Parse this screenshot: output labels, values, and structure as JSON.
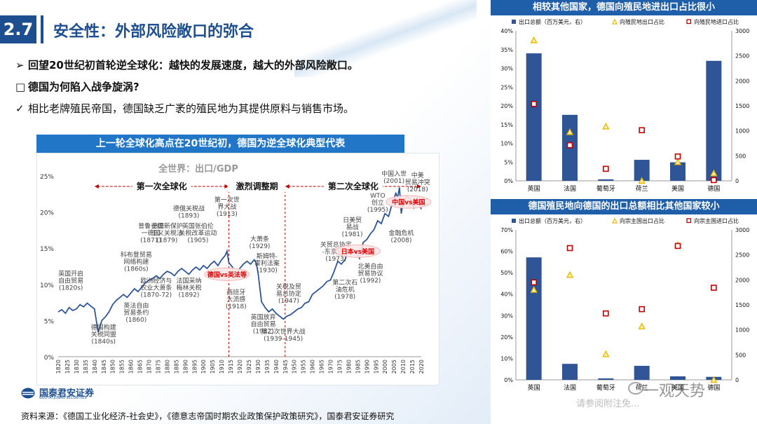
{
  "header": {
    "section_number": "2.7",
    "title": "安全性：外部风险敞口的弥合"
  },
  "bullets": [
    {
      "mark": "➢",
      "text": "回望20世纪初首轮逆全球化：越快的发展速度，越大的外部风险敞口。"
    },
    {
      "mark": "□",
      "text": "德国为何陷入战争旋涡?"
    },
    {
      "mark": "✓",
      "text": "相比老牌殖民帝国，德国缺乏广袤的殖民地为其提供原料与销售市场。"
    }
  ],
  "main_chart": {
    "banner": "上一轮全球化高点在20世纪初，德国为逆全球化典型代表"
  },
  "logo": {
    "cn": "国泰君安证券",
    "en": "GUOTAI JUNAN SECURITIES"
  },
  "source": "资料来源：《德国工业化经济-社会史》，《德意志帝国时期农业政策保护政策研究》，国泰君安证券研究",
  "right_top": {
    "banner": "相较其他国家，德国向殖民地进出口占比很小"
  },
  "right_bottom": {
    "banner": "德国殖民地向德国的出口总额相比其他国家较小",
    "partial_caption": "请参阅附注免..."
  },
  "watermark": {
    "text": "一观天势"
  },
  "chart_data": [
    {
      "type": "line",
      "title": "全世界：出口/GDP",
      "x": [
        1820,
        1822,
        1824,
        1826,
        1828,
        1830,
        1832,
        1834,
        1836,
        1838,
        1840,
        1842,
        1844,
        1846,
        1848,
        1850,
        1852,
        1854,
        1856,
        1858,
        1860,
        1862,
        1864,
        1866,
        1868,
        1870,
        1872,
        1874,
        1876,
        1878,
        1880,
        1882,
        1884,
        1886,
        1888,
        1890,
        1892,
        1894,
        1896,
        1898,
        1900,
        1902,
        1904,
        1906,
        1908,
        1910,
        1912,
        1913,
        1914,
        1916,
        1918,
        1920,
        1922,
        1924,
        1926,
        1928,
        1929,
        1930,
        1932,
        1934,
        1936,
        1938,
        1940,
        1942,
        1944,
        1946,
        1948,
        1950,
        1952,
        1954,
        1956,
        1958,
        1960,
        1962,
        1964,
        1966,
        1968,
        1970,
        1972,
        1974,
        1976,
        1978,
        1980,
        1982,
        1984,
        1986,
        1988,
        1990,
        1992,
        1994,
        1996,
        1998,
        2000,
        2002,
        2004,
        2006,
        2007,
        2008,
        2009,
        2010,
        2012,
        2014,
        2016,
        2018,
        2020
      ],
      "y": [
        6.2,
        6.5,
        6.0,
        6.8,
        6.4,
        6.6,
        7.2,
        6.9,
        7.4,
        7.0,
        6.6,
        3.4,
        5.0,
        5.5,
        6.2,
        7.2,
        7.8,
        8.2,
        8.6,
        8.2,
        8.8,
        9.4,
        9.0,
        9.6,
        10.2,
        10.6,
        10.8,
        11.2,
        10.8,
        11.4,
        11.8,
        11.6,
        11.2,
        11.8,
        12.2,
        11.8,
        11.4,
        12.0,
        12.4,
        12.0,
        12.6,
        12.2,
        12.8,
        13.2,
        12.6,
        13.4,
        14.0,
        14.6,
        13.0,
        12.4,
        11.2,
        12.2,
        12.8,
        13.2,
        12.8,
        13.4,
        13.0,
        11.8,
        7.6,
        6.8,
        6.2,
        6.6,
        6.0,
        5.6,
        5.2,
        5.6,
        5.8,
        6.2,
        6.6,
        6.8,
        7.4,
        7.6,
        8.6,
        9.0,
        9.4,
        9.8,
        10.4,
        10.6,
        11.8,
        13.2,
        12.8,
        13.4,
        14.8,
        14.4,
        14.6,
        13.6,
        15.8,
        16.2,
        17.0,
        17.6,
        18.8,
        18.4,
        19.8,
        19.4,
        21.2,
        22.6,
        22.0,
        23.4,
        19.8,
        21.4,
        22.2,
        21.8,
        20.6,
        22.0,
        20.4
      ],
      "ylim": [
        0,
        25
      ],
      "yticks": [
        "0%",
        "5%",
        "10%",
        "15%",
        "20%",
        "25%"
      ],
      "xticks": [
        "1820",
        "1825",
        "1830",
        "1835",
        "1840",
        "1845",
        "1850",
        "1855",
        "1860",
        "1865",
        "1870",
        "1875",
        "1880",
        "1885",
        "1890",
        "1895",
        "1900",
        "1905",
        "1910",
        "1915",
        "1920",
        "1925",
        "1930",
        "1935",
        "1940",
        "1945",
        "1950",
        "1955",
        "1960",
        "1965",
        "1970",
        "1975",
        "1980",
        "1985",
        "1990",
        "1995",
        "2000",
        "2005",
        "2010",
        "2015",
        "2020"
      ],
      "periods": [
        {
          "label": "第一次全球化",
          "start": 1840,
          "end": 1914
        },
        {
          "label": "激烈调整期",
          "start": 1914,
          "end": 1945
        },
        {
          "label": "第二次全球化",
          "start": 1945,
          "end": 2020
        }
      ],
      "highlights": [
        {
          "text": "德国vs英法等",
          "x": 1913,
          "y": 11.4
        },
        {
          "text": "日本vs美国",
          "x": 1985,
          "y": 14.6
        },
        {
          "text": "中国vs美国",
          "x": 2013,
          "y": 21.4
        }
      ],
      "annotations": [
        {
          "text": "英国开启\n自由贸易\n(1820s)",
          "x": 1827,
          "y": 11.2
        },
        {
          "text": "德国构建\n关税同盟\n(1840s)",
          "x": 1845,
          "y": 3.8
        },
        {
          "text": "科布登贸易\n网络构建\n(1860s)",
          "x": 1863,
          "y": 13.8
        },
        {
          "text": "英法自由\n贸易条约\n(1860)",
          "x": 1863,
          "y": 6.8
        },
        {
          "text": "普鲁士统\n一德国\n(1871)",
          "x": 1871,
          "y": 17.8
        },
        {
          "text": "德国新保护\n主义关税法\n(1879)",
          "x": 1880,
          "y": 17.8
        },
        {
          "text": "欧洲经济与\n农业大萧条\n(1870-72)",
          "x": 1874,
          "y": 10.2
        },
        {
          "text": "德俄关税战\n(1893)",
          "x": 1892,
          "y": 20.2
        },
        {
          "text": "英国张伯伦\n关税改革运动\n(1905)",
          "x": 1897,
          "y": 17.8
        },
        {
          "text": "法国采纳\n梅林关税\n(1892)",
          "x": 1892,
          "y": 10.2
        },
        {
          "text": "第一次世\n界大战\n(1913)",
          "x": 1913,
          "y": 21.4
        },
        {
          "text": "西班牙\n大流感\n(1918)",
          "x": 1918,
          "y": 8.6
        },
        {
          "text": "大萧条\n(1929)",
          "x": 1931,
          "y": 16.0
        },
        {
          "text": "斯姆特-\n霍利法案\n(1930)",
          "x": 1935,
          "y": 13.6
        },
        {
          "text": "英国放弃\n自由贸易\n(1932)",
          "x": 1933,
          "y": 5.2
        },
        {
          "text": "关税及贸\n易总协定\n(1947)",
          "x": 1947,
          "y": 9.4
        },
        {
          "text": "第二次世界大战\n(1939-1945)",
          "x": 1944,
          "y": 3.2
        },
        {
          "text": "关贸总协定\n-东京回合\n(1973)",
          "x": 1973,
          "y": 15.2
        },
        {
          "text": "第二次石\n油危机\n(1978)",
          "x": 1978,
          "y": 10.0
        },
        {
          "text": "日美贸\n易战\n(1981)",
          "x": 1982,
          "y": 18.6
        },
        {
          "text": "北美自由\n贸易协议\n(1992)",
          "x": 1992,
          "y": 12.2
        },
        {
          "text": "WTO\n创立\n(1995)",
          "x": 1996,
          "y": 22.0
        },
        {
          "text": "中国入世\n(2001)",
          "x": 2005,
          "y": 25.0
        },
        {
          "text": "中美\n贸易冲突\n(2018)",
          "x": 2018,
          "y": 24.8
        },
        {
          "text": "金融危机\n(2008)",
          "x": 2009,
          "y": 16.8
        }
      ]
    },
    {
      "type": "bar",
      "categories": [
        "英国",
        "法国",
        "葡萄牙",
        "荷兰",
        "美国",
        "德国"
      ],
      "series": [
        {
          "name": "出口总额（百万美元，右）",
          "axis": "right",
          "values": [
            2550,
            1320,
            30,
            420,
            370,
            2400
          ]
        },
        {
          "name": "向殖民地出口占比",
          "axis": "left",
          "values": [
            37.5,
            13.0,
            14.5,
            0.0,
            5.0,
            2.0
          ]
        },
        {
          "name": "向殖民地进口占比",
          "axis": "left",
          "values": [
            20.5,
            9.5,
            3.2,
            13.5,
            6.5,
            0.2
          ]
        }
      ],
      "ylim": [
        0,
        40
      ],
      "yticks_left": [
        "0%",
        "5%",
        "10%",
        "15%",
        "20%",
        "25%",
        "30%",
        "35%",
        "40%"
      ],
      "ylim_right": [
        0,
        3000
      ],
      "yticks_right": [
        "0",
        "500",
        "1000",
        "1500",
        "2000",
        "2500",
        "3000"
      ],
      "legend": "top"
    },
    {
      "type": "bar",
      "categories": [
        "英国",
        "法国",
        "葡萄牙",
        "荷兰",
        "美国",
        "德国"
      ],
      "series": [
        {
          "name": "出口总额（百万美元，右）",
          "axis": "right",
          "values": [
            2450,
            320,
            30,
            280,
            70,
            60
          ]
        },
        {
          "name": "向宗主国出口占比",
          "axis": "left",
          "values": [
            42.0,
            49.0,
            12.0,
            25.0,
            63.0,
            0.0
          ]
        },
        {
          "name": "向宗主国进口占比",
          "axis": "left",
          "values": [
            45.5,
            61.5,
            31.0,
            33.0,
            62.5,
            43.0
          ]
        }
      ],
      "ylim": [
        0,
        70
      ],
      "yticks_left": [
        "0%",
        "10%",
        "20%",
        "30%",
        "40%",
        "50%",
        "60%",
        "70%"
      ],
      "ylim_right": [
        0,
        3000
      ],
      "yticks_right": [
        "0",
        "500",
        "1000",
        "1500",
        "2000",
        "2500",
        "3000"
      ],
      "legend": "top"
    }
  ]
}
